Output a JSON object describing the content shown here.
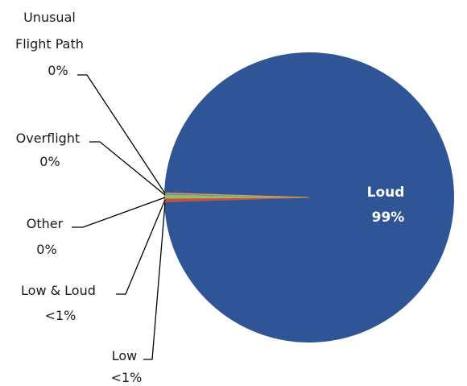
{
  "chart_data": {
    "type": "pie",
    "title": "",
    "legend": "none",
    "slices": [
      {
        "name": "Loud",
        "label": "99%",
        "value": 99.0,
        "color": "#2F5597"
      },
      {
        "name": "Low",
        "label": "<1%",
        "value": 0.4,
        "color": "#C0504D"
      },
      {
        "name": "Low & Loud",
        "label": "<1%",
        "value": 0.4,
        "color": "#9BBB59"
      },
      {
        "name": "Other",
        "label": "0%",
        "value": 0.1,
        "color": "#4BACC6"
      },
      {
        "name": "Overflight",
        "label": "0%",
        "value": 0.05,
        "color": "#8064A2"
      },
      {
        "name": "Unusual Flight Path",
        "label": "0%",
        "value": 0.05,
        "color": "#F79646"
      }
    ],
    "outside_labels": [
      {
        "lines": [
          "Unusual",
          "Flight Path",
          "0%"
        ]
      },
      {
        "lines": [
          "Overflight",
          "0%"
        ]
      },
      {
        "lines": [
          "Other",
          "0%"
        ]
      },
      {
        "lines": [
          "Low & Loud",
          "<1%"
        ]
      },
      {
        "lines": [
          "Low",
          "<1%"
        ]
      }
    ],
    "inside_label": {
      "lines": [
        "Loud",
        "99%"
      ]
    }
  }
}
